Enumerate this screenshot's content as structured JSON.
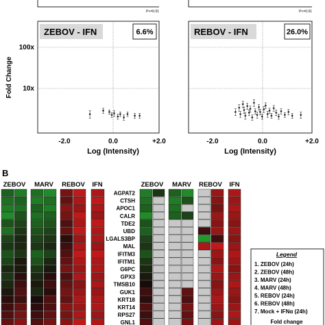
{
  "panel_a": {
    "y_axis_label": "Fold Change",
    "x_axis_label": "Log (Intensity)",
    "pval_label": "P<=0.01"
  },
  "chart_data": [
    {
      "type": "scatter",
      "title": "ZEBOV - IFN",
      "badge": "6.6%",
      "xlabel": "Log (Intensity)",
      "ylabel": "Fold Change",
      "xlim": [
        -3.0,
        2.0
      ],
      "ylim_log10": [
        0,
        2.45
      ],
      "x_ticks": [
        "-2.0",
        "0.0",
        "+2.0"
      ],
      "y_ticks": [
        "10x",
        "100x"
      ],
      "grid": false,
      "points": [
        {
          "x": -0.85,
          "y": 2.6,
          "err": 0.5
        },
        {
          "x": -0.3,
          "y": 3.1,
          "err": 0.4
        },
        {
          "x": -0.05,
          "y": 2.9,
          "err": 0.3
        },
        {
          "x": 0.05,
          "y": 2.5,
          "err": 0.3
        },
        {
          "x": 0.15,
          "y": 2.7,
          "err": 0.4
        },
        {
          "x": 0.3,
          "y": 2.3,
          "err": 0.3
        },
        {
          "x": 0.4,
          "y": 2.6,
          "err": 0.3
        },
        {
          "x": 0.55,
          "y": 2.2,
          "err": 0.3
        },
        {
          "x": 0.7,
          "y": 2.6,
          "err": 0.3
        },
        {
          "x": 1.0,
          "y": 2.4,
          "err": 0.3
        },
        {
          "x": 1.2,
          "y": 2.4,
          "err": 0.3
        }
      ]
    },
    {
      "type": "scatter",
      "title": "REBOV - IFN",
      "badge": "26.0%",
      "xlabel": "Log (Intensity)",
      "ylabel": "",
      "xlim": [
        -3.0,
        2.0
      ],
      "ylim_log10": [
        0,
        2.45
      ],
      "x_ticks": [
        "-2.0",
        "0.0",
        "+2.0"
      ],
      "y_ticks": [],
      "grid": false,
      "points": [
        {
          "x": -1.1,
          "y": 2.9,
          "err": 0.5
        },
        {
          "x": -0.95,
          "y": 3.6,
          "err": 0.6
        },
        {
          "x": -0.9,
          "y": 2.6,
          "err": 0.4
        },
        {
          "x": -0.8,
          "y": 4.3,
          "err": 0.7
        },
        {
          "x": -0.75,
          "y": 3.2,
          "err": 0.5
        },
        {
          "x": -0.7,
          "y": 2.4,
          "err": 0.4
        },
        {
          "x": -0.62,
          "y": 3.9,
          "err": 0.6
        },
        {
          "x": -0.55,
          "y": 2.8,
          "err": 0.4
        },
        {
          "x": -0.5,
          "y": 3.4,
          "err": 0.5
        },
        {
          "x": -0.42,
          "y": 2.2,
          "err": 0.3
        },
        {
          "x": -0.35,
          "y": 4.6,
          "err": 0.8
        },
        {
          "x": -0.3,
          "y": 3.0,
          "err": 0.4
        },
        {
          "x": -0.22,
          "y": 2.5,
          "err": 0.4
        },
        {
          "x": -0.15,
          "y": 3.7,
          "err": 0.5
        },
        {
          "x": -0.1,
          "y": 2.9,
          "err": 0.4
        },
        {
          "x": -0.02,
          "y": 2.3,
          "err": 0.3
        },
        {
          "x": 0.05,
          "y": 3.3,
          "err": 0.5
        },
        {
          "x": 0.12,
          "y": 4.0,
          "err": 0.6
        },
        {
          "x": 0.2,
          "y": 2.6,
          "err": 0.4
        },
        {
          "x": 0.28,
          "y": 3.1,
          "err": 0.4
        },
        {
          "x": 0.36,
          "y": 2.4,
          "err": 0.3
        },
        {
          "x": 0.45,
          "y": 3.5,
          "err": 0.5
        },
        {
          "x": 0.55,
          "y": 2.8,
          "err": 0.4
        },
        {
          "x": 0.65,
          "y": 2.3,
          "err": 0.3
        },
        {
          "x": 0.75,
          "y": 3.0,
          "err": 0.4
        },
        {
          "x": 0.9,
          "y": 2.5,
          "err": 0.3
        },
        {
          "x": 1.05,
          "y": 2.9,
          "err": 0.4
        },
        {
          "x": 1.2,
          "y": 2.4,
          "err": 0.3
        },
        {
          "x": 1.55,
          "y": 2.5,
          "err": 0.4
        }
      ]
    },
    {
      "type": "heatmap",
      "panel_label": "B",
      "group_headers": [
        "ZEBOV",
        "MARV",
        "REBOV",
        "IFN"
      ],
      "genes": [
        "AGPAT2",
        "CTSH",
        "APOC1",
        "CALR",
        "TDE2",
        "UBD",
        "LGALS3BP",
        "MAL",
        "IFITM3",
        "IFITM1",
        "G6PC",
        "GPX3",
        "TMSB10",
        "GUK1",
        "KRT18",
        "KRT14",
        "RPS27",
        "GNL1"
      ],
      "left_matrix": [
        [
          -0.6,
          -0.8,
          -0.7,
          -0.9,
          0.5,
          0.9,
          0.8
        ],
        [
          -0.7,
          -0.6,
          -0.8,
          -0.7,
          0.4,
          0.8,
          0.9
        ],
        [
          -0.8,
          -0.7,
          -0.6,
          -0.8,
          0.6,
          0.7,
          0.8
        ],
        [
          -0.9,
          -0.5,
          -0.7,
          -0.6,
          0.5,
          0.9,
          0.7
        ],
        [
          -0.5,
          -0.4,
          -0.6,
          -0.5,
          0.3,
          0.8,
          0.9
        ],
        [
          -0.7,
          -0.3,
          -0.5,
          -0.4,
          0.4,
          0.9,
          0.8
        ],
        [
          -0.4,
          -0.2,
          -0.4,
          -0.3,
          0.1,
          0.7,
          0.8
        ],
        [
          -0.3,
          -0.2,
          -0.3,
          -0.2,
          0.2,
          0.8,
          0.7
        ],
        [
          -0.5,
          -0.3,
          -0.6,
          -0.4,
          0.3,
          0.9,
          0.9
        ],
        [
          -0.4,
          -0.1,
          -0.5,
          -0.2,
          0.4,
          0.8,
          0.8
        ],
        [
          -0.2,
          -0.1,
          -0.3,
          -0.1,
          0.5,
          0.7,
          0.8
        ],
        [
          -0.3,
          0.1,
          -0.2,
          0.1,
          0.3,
          0.8,
          0.7
        ],
        [
          -0.2,
          0.2,
          -0.1,
          0.2,
          0.4,
          0.6,
          0.8
        ],
        [
          -0.1,
          0.3,
          -0.2,
          0.1,
          0.5,
          0.7,
          0.7
        ],
        [
          0.1,
          0.2,
          0.0,
          0.3,
          0.4,
          0.8,
          0.8
        ],
        [
          0.2,
          0.4,
          0.1,
          0.3,
          0.6,
          0.7,
          0.8
        ],
        [
          0.3,
          0.5,
          0.2,
          0.4,
          0.5,
          0.8,
          0.7
        ],
        [
          0.4,
          0.6,
          0.3,
          0.5,
          0.6,
          0.9,
          0.8
        ]
      ],
      "right_matrix": [
        [
          -0.8,
          -0.3,
          -0.6,
          -0.9,
          null,
          0.7,
          0.8
        ],
        [
          -0.7,
          null,
          -0.8,
          -0.5,
          null,
          0.6,
          0.7
        ],
        [
          -0.6,
          null,
          -0.7,
          null,
          null,
          0.5,
          0.8
        ],
        [
          -0.9,
          null,
          -0.6,
          -0.4,
          null,
          0.7,
          0.7
        ],
        [
          -0.5,
          null,
          null,
          null,
          null,
          0.6,
          0.6
        ],
        [
          -0.6,
          null,
          null,
          null,
          0.2,
          0.7,
          0.7
        ],
        [
          -0.4,
          null,
          null,
          null,
          -1.0,
          0.2,
          0.6
        ],
        [
          -0.3,
          null,
          null,
          null,
          0.8,
          0.9,
          0.7
        ],
        [
          -0.5,
          null,
          null,
          null,
          null,
          0.7,
          0.8
        ],
        [
          -0.3,
          null,
          null,
          null,
          null,
          0.6,
          0.7
        ],
        [
          -0.2,
          null,
          null,
          null,
          null,
          0.8,
          0.6
        ],
        [
          -0.1,
          null,
          null,
          null,
          null,
          0.7,
          0.7
        ],
        [
          0.0,
          null,
          null,
          null,
          null,
          0.6,
          0.8
        ],
        [
          0.2,
          null,
          null,
          0.4,
          null,
          0.7,
          0.7
        ],
        [
          0.1,
          null,
          null,
          0.3,
          null,
          0.8,
          0.6
        ],
        [
          0.3,
          null,
          null,
          0.5,
          null,
          0.7,
          0.7
        ],
        [
          0.2,
          null,
          null,
          0.4,
          null,
          0.6,
          0.8
        ],
        [
          0.3,
          null,
          null,
          0.5,
          null,
          0.7,
          0.7
        ]
      ],
      "legend": {
        "title": "Legend",
        "items": [
          "1. ZEBOV (24h)",
          "2. ZEBOV (48h)",
          "3. MARV (24h)",
          "4. MARV (48h)",
          "5. REBOV (24h)",
          "6. REBOV (48h)",
          "7. Mock + IFNα (24h)"
        ],
        "footer": "Fold change"
      },
      "colors": {
        "up": "#d21a1a",
        "down": "#1f9a2b",
        "mid": "#1a0b0b",
        "missing": "#c8c8c8"
      }
    }
  ]
}
